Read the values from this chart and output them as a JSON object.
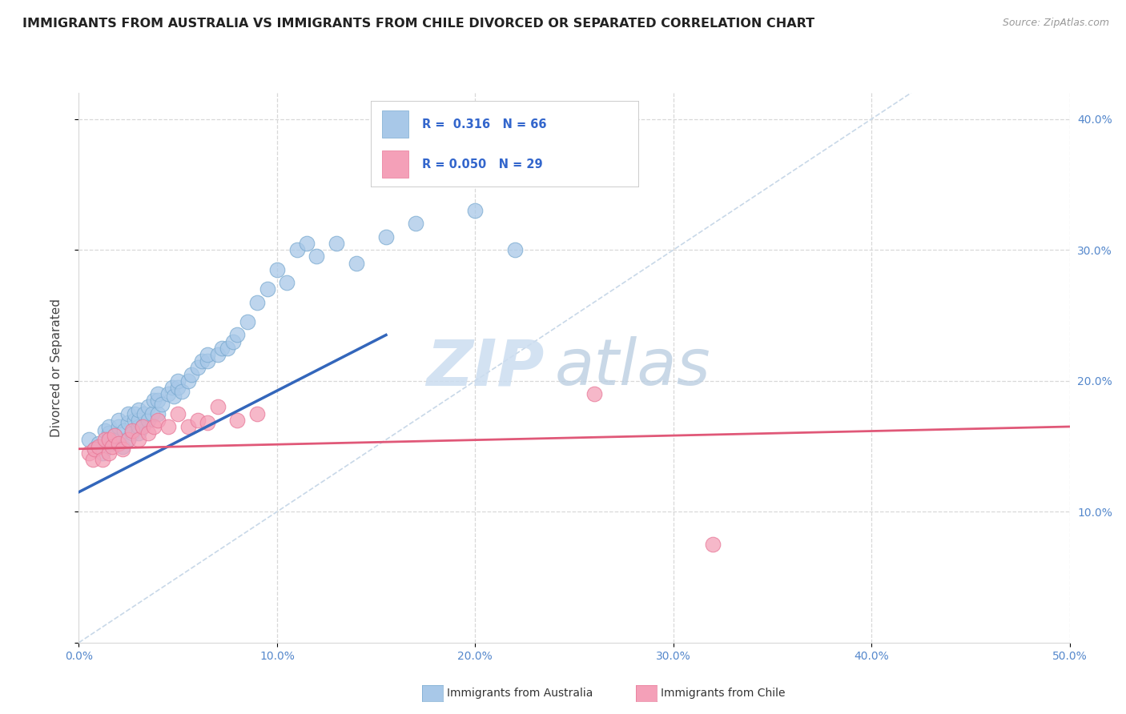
{
  "title": "IMMIGRANTS FROM AUSTRALIA VS IMMIGRANTS FROM CHILE DIVORCED OR SEPARATED CORRELATION CHART",
  "source_text": "Source: ZipAtlas.com",
  "ylabel": "Divorced or Separated",
  "xlim": [
    0.0,
    0.5
  ],
  "ylim": [
    0.0,
    0.42
  ],
  "xticks": [
    0.0,
    0.1,
    0.2,
    0.3,
    0.4,
    0.5
  ],
  "yticks": [
    0.1,
    0.2,
    0.3,
    0.4
  ],
  "watermark_zip": "ZIP",
  "watermark_atlas": "atlas",
  "australia_color": "#a8c8e8",
  "chile_color": "#f4a0b8",
  "australia_edge": "#7aaad0",
  "chile_edge": "#e87898",
  "australia_line_color": "#3366bb",
  "chile_line_color": "#e05878",
  "diag_line_color": "#c8d8e8",
  "grid_color": "#d8d8d8",
  "background_color": "#ffffff",
  "title_color": "#222222",
  "axis_label_color": "#444444",
  "tick_color": "#5588cc",
  "legend_text_color": "#3366cc",
  "aus_scatter_x": [
    0.005,
    0.008,
    0.01,
    0.012,
    0.013,
    0.015,
    0.015,
    0.015,
    0.017,
    0.018,
    0.02,
    0.02,
    0.02,
    0.022,
    0.023,
    0.025,
    0.025,
    0.025,
    0.027,
    0.028,
    0.028,
    0.03,
    0.03,
    0.03,
    0.03,
    0.032,
    0.033,
    0.035,
    0.035,
    0.037,
    0.038,
    0.04,
    0.04,
    0.04,
    0.042,
    0.045,
    0.047,
    0.048,
    0.05,
    0.05,
    0.052,
    0.055,
    0.057,
    0.06,
    0.062,
    0.065,
    0.065,
    0.07,
    0.072,
    0.075,
    0.078,
    0.08,
    0.085,
    0.09,
    0.095,
    0.1,
    0.105,
    0.11,
    0.115,
    0.12,
    0.13,
    0.14,
    0.155,
    0.17,
    0.2,
    0.22
  ],
  "aus_scatter_y": [
    0.155,
    0.148,
    0.152,
    0.145,
    0.162,
    0.155,
    0.16,
    0.165,
    0.152,
    0.158,
    0.155,
    0.165,
    0.17,
    0.15,
    0.162,
    0.155,
    0.168,
    0.175,
    0.16,
    0.17,
    0.175,
    0.16,
    0.165,
    0.17,
    0.178,
    0.165,
    0.175,
    0.17,
    0.18,
    0.175,
    0.185,
    0.175,
    0.185,
    0.19,
    0.182,
    0.19,
    0.195,
    0.188,
    0.195,
    0.2,
    0.192,
    0.2,
    0.205,
    0.21,
    0.215,
    0.215,
    0.22,
    0.22,
    0.225,
    0.225,
    0.23,
    0.235,
    0.245,
    0.26,
    0.27,
    0.285,
    0.275,
    0.3,
    0.305,
    0.295,
    0.305,
    0.29,
    0.31,
    0.32,
    0.33,
    0.3
  ],
  "chile_scatter_x": [
    0.005,
    0.007,
    0.008,
    0.01,
    0.012,
    0.013,
    0.015,
    0.015,
    0.017,
    0.018,
    0.02,
    0.022,
    0.025,
    0.027,
    0.03,
    0.032,
    0.035,
    0.038,
    0.04,
    0.045,
    0.05,
    0.055,
    0.06,
    0.065,
    0.07,
    0.08,
    0.09,
    0.26,
    0.32
  ],
  "chile_scatter_y": [
    0.145,
    0.14,
    0.148,
    0.15,
    0.14,
    0.155,
    0.145,
    0.155,
    0.15,
    0.158,
    0.152,
    0.148,
    0.155,
    0.162,
    0.155,
    0.165,
    0.16,
    0.165,
    0.17,
    0.165,
    0.175,
    0.165,
    0.17,
    0.168,
    0.18,
    0.17,
    0.175,
    0.19,
    0.075
  ],
  "aus_line_x": [
    0.0,
    0.155
  ],
  "aus_line_y": [
    0.115,
    0.235
  ],
  "chile_line_x": [
    0.0,
    0.5
  ],
  "chile_line_y": [
    0.148,
    0.165
  ],
  "diag_line_x": [
    0.0,
    0.42
  ],
  "diag_line_y": [
    0.0,
    0.42
  ],
  "bottom_legend_aus": "Immigrants from Australia",
  "bottom_legend_chile": "Immigrants from Chile"
}
